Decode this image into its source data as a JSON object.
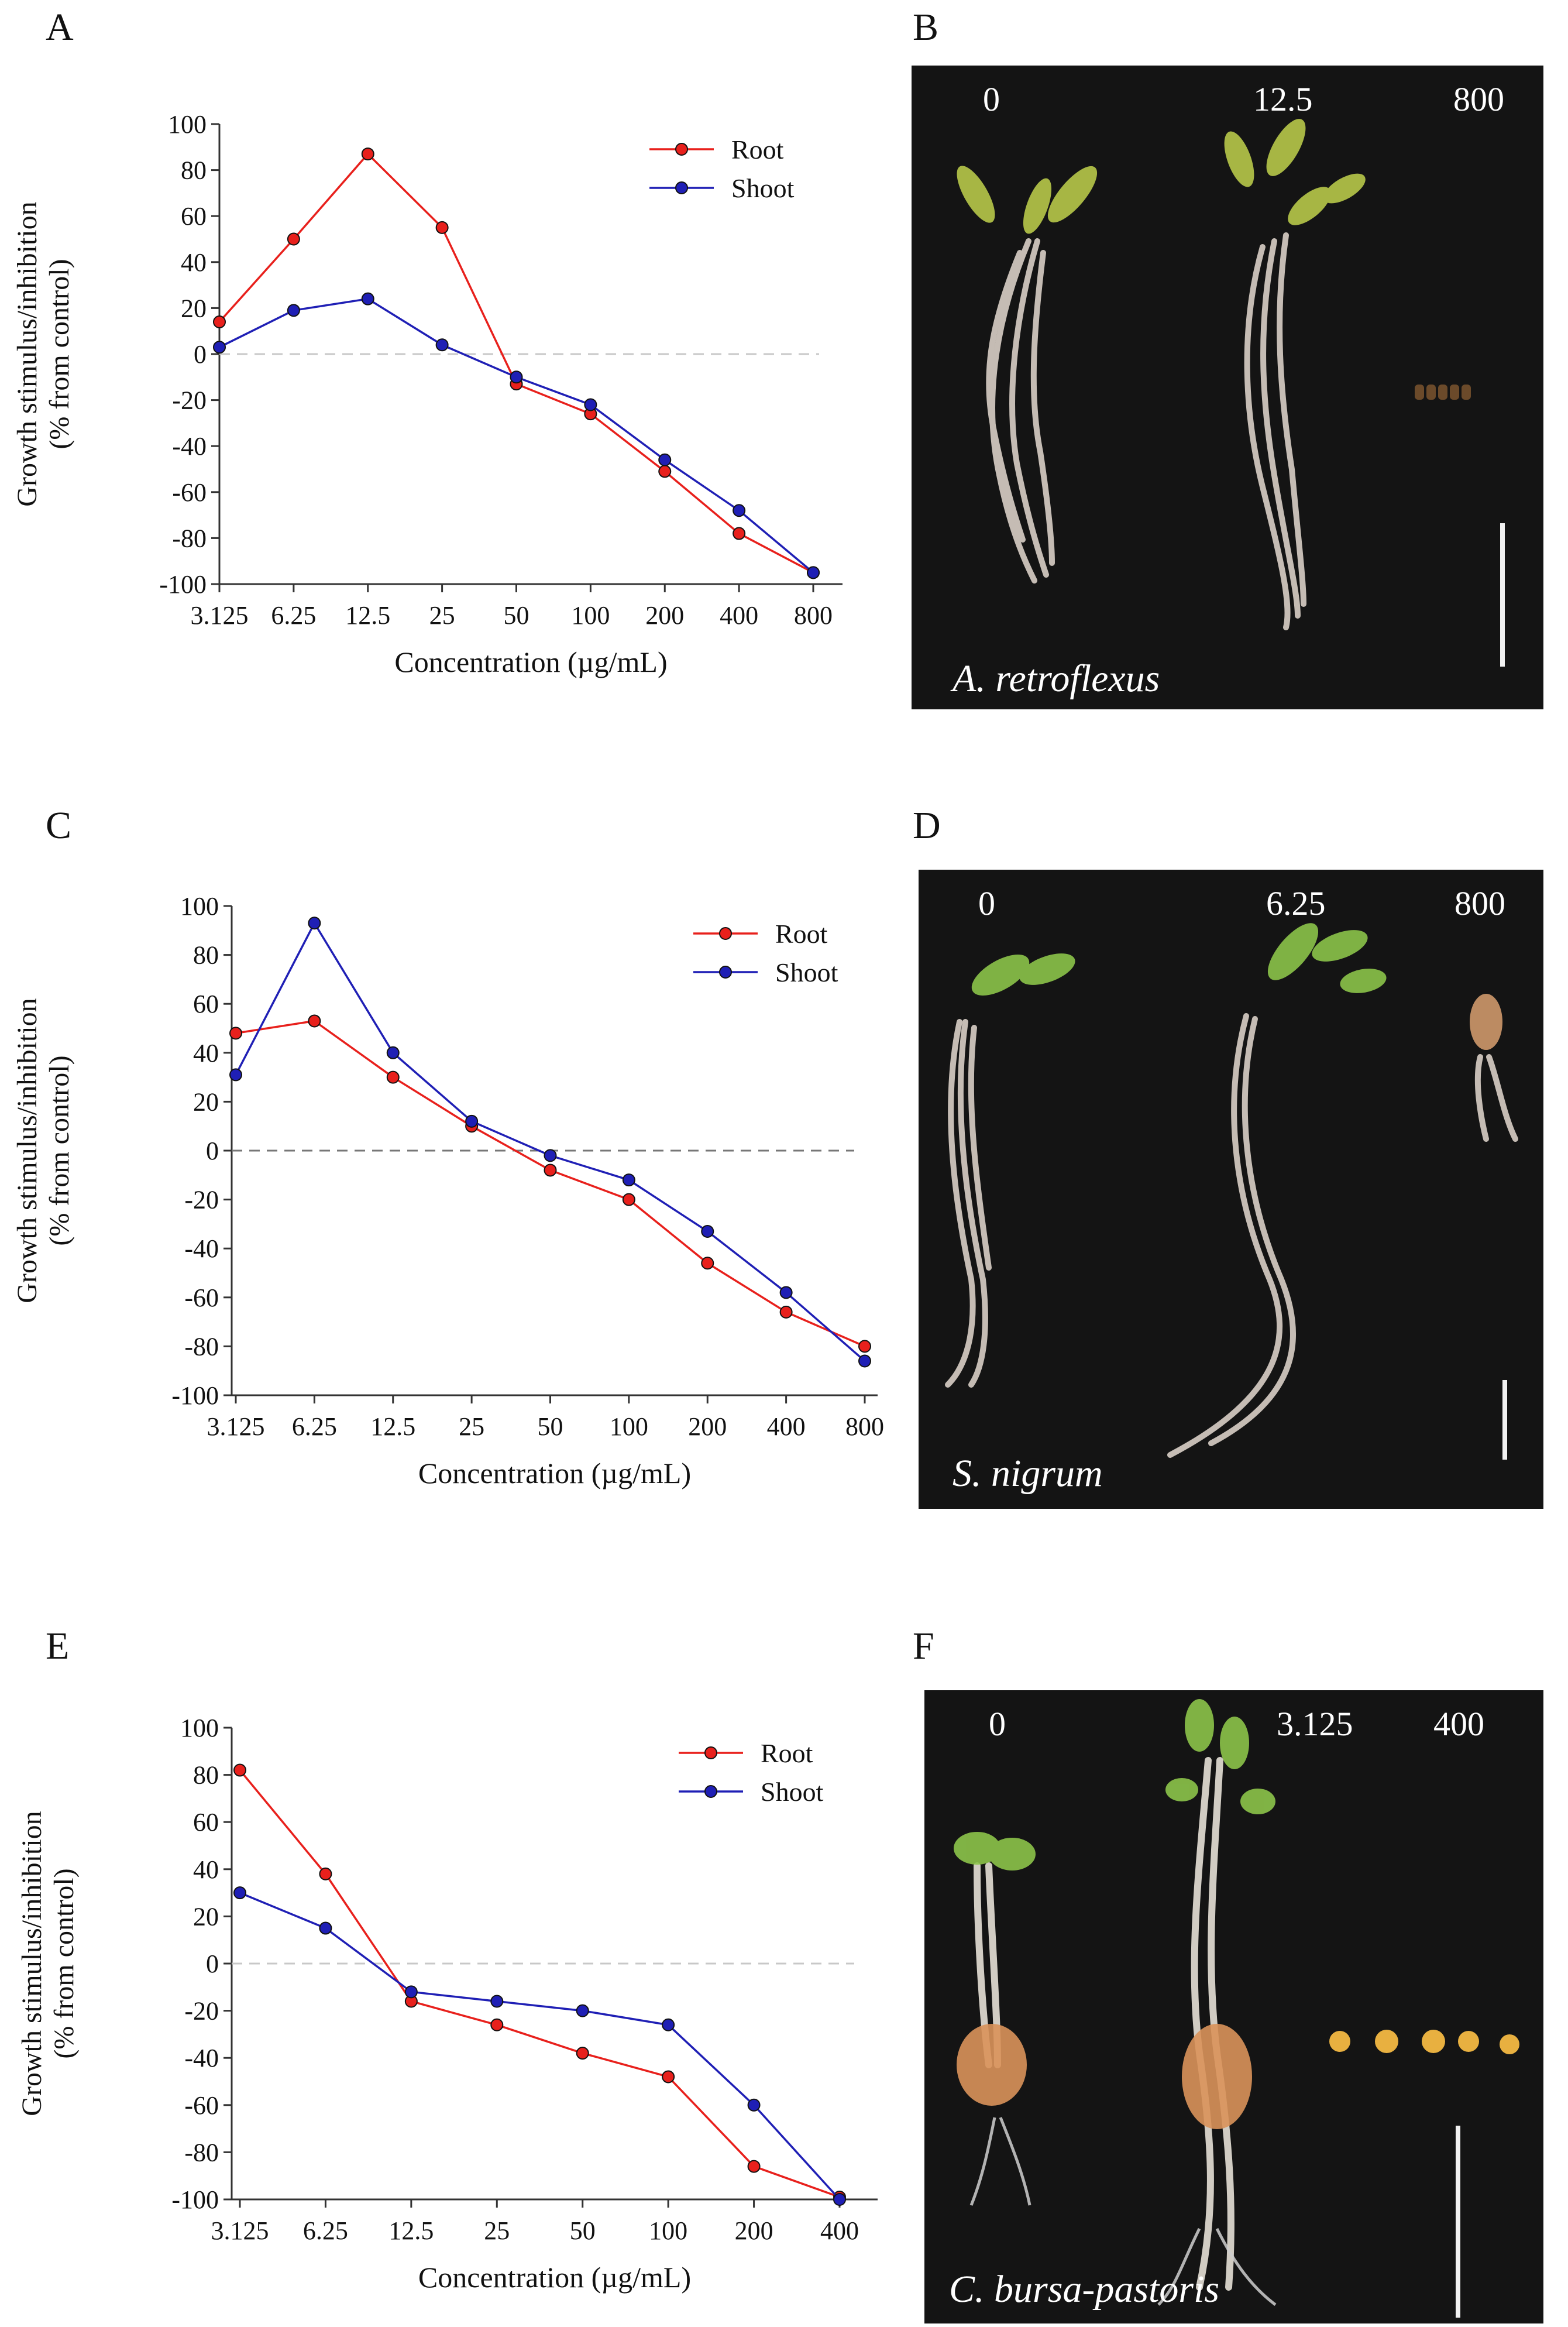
{
  "panels": [
    {
      "letter": "A"
    },
    {
      "letter": "B"
    },
    {
      "letter": "C"
    },
    {
      "letter": "D"
    },
    {
      "letter": "E"
    },
    {
      "letter": "F"
    }
  ],
  "chart_data": [
    {
      "type": "line",
      "panel": "A",
      "categories": [
        "3.125",
        "6.25",
        "12.5",
        "25",
        "50",
        "100",
        "200",
        "400",
        "800"
      ],
      "series": [
        {
          "name": "Root",
          "color": "#e8201c",
          "values": [
            14,
            50,
            87,
            55,
            -13,
            -26,
            -51,
            -78,
            -95
          ]
        },
        {
          "name": "Shoot",
          "color": "#1f1fb5",
          "values": [
            3,
            19,
            24,
            4,
            -10,
            -22,
            -46,
            -68,
            -95
          ]
        }
      ],
      "yticks": [
        "100",
        "80",
        "60",
        "40",
        "20",
        "0",
        "-20",
        "-40",
        "-60",
        "-80",
        "-100"
      ],
      "ylim": [
        -100,
        100
      ],
      "xlabel": "Concentration (µg/mL)",
      "ylabel_line1": "Growth stimulus/inhibition",
      "ylabel_line2": "(% from control)",
      "zero_line_color": "#c8c8c8",
      "legend_position": "top-right"
    },
    {
      "type": "line",
      "panel": "C",
      "categories": [
        "3.125",
        "6.25",
        "12.5",
        "25",
        "50",
        "100",
        "200",
        "400",
        "800"
      ],
      "series": [
        {
          "name": "Root",
          "color": "#e8201c",
          "values": [
            48,
            53,
            30,
            10,
            -8,
            -20,
            -46,
            -66,
            -80
          ]
        },
        {
          "name": "Shoot",
          "color": "#1f1fb5",
          "values": [
            31,
            93,
            40,
            12,
            -2,
            -12,
            -33,
            -58,
            -86
          ]
        }
      ],
      "yticks": [
        "100",
        "80",
        "60",
        "40",
        "20",
        "0",
        "-20",
        "-40",
        "-60",
        "-80",
        "-100"
      ],
      "ylim": [
        -100,
        100
      ],
      "xlabel": "Concentration (µg/mL)",
      "ylabel_line1": "Growth stimulus/inhibition",
      "ylabel_line2": "(% from control)",
      "zero_line_color": "#777777",
      "legend_position": "top-right"
    },
    {
      "type": "line",
      "panel": "E",
      "categories": [
        "3.125",
        "6.25",
        "12.5",
        "25",
        "50",
        "100",
        "200",
        "400"
      ],
      "series": [
        {
          "name": "Root",
          "color": "#e8201c",
          "values": [
            82,
            38,
            -16,
            -26,
            -38,
            -48,
            -86,
            -99
          ]
        },
        {
          "name": "Shoot",
          "color": "#1f1fb5",
          "values": [
            30,
            15,
            -12,
            -16,
            -20,
            -26,
            -60,
            -100
          ]
        }
      ],
      "yticks": [
        "100",
        "80",
        "60",
        "40",
        "20",
        "0",
        "-20",
        "-40",
        "-60",
        "-80",
        "-100"
      ],
      "ylim": [
        -100,
        100
      ],
      "xlabel": "Concentration (µg/mL)",
      "ylabel_line1": "Growth stimulus/inhibition",
      "ylabel_line2": "(% from control)",
      "zero_line_color": "#c8c8c8",
      "legend_position": "top-right"
    }
  ],
  "photos": [
    {
      "panel": "B",
      "concentrations": [
        "0",
        "12.5",
        "800"
      ],
      "species": "A. retroflexus"
    },
    {
      "panel": "D",
      "concentrations": [
        "0",
        "6.25",
        "800"
      ],
      "species": "S. nigrum"
    },
    {
      "panel": "F",
      "concentrations": [
        "0",
        "3.125",
        "400"
      ],
      "species": "C. bursa-pastoris"
    }
  ]
}
